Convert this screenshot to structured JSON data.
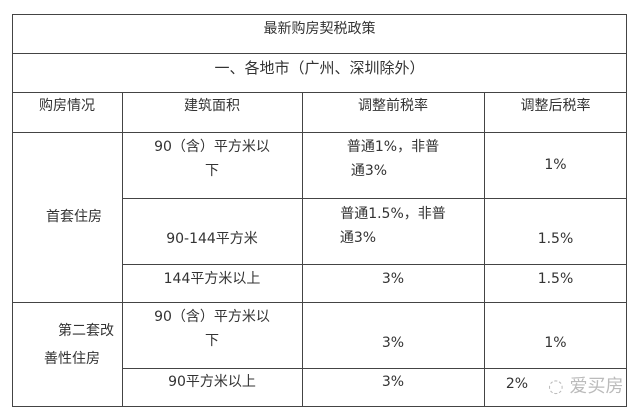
{
  "title": "最新购房契税政策",
  "subtitle": "一、各地市（广州、深圳除外）",
  "headers": [
    "购房情况",
    "建筑面积",
    "调整前税率",
    "调整后税率"
  ],
  "groups": [
    {
      "label_lines": [
        "首套住房"
      ],
      "rows": [
        {
          "area": [
            "90（含）平方米以",
            "下"
          ],
          "before": [
            "普通1%，非普",
            "通3%"
          ],
          "after": "1%"
        },
        {
          "area": [
            "90-144平方米"
          ],
          "before": [
            "普通1.5%，非普",
            "通3%"
          ],
          "after": "1.5%"
        },
        {
          "area": [
            "144平方米以上"
          ],
          "before": [
            "3%"
          ],
          "after": "1.5%"
        }
      ]
    },
    {
      "label_lines": [
        "第二套改",
        "善性住房"
      ],
      "rows": [
        {
          "area": [
            "90（含）平方米以",
            "下"
          ],
          "before": [
            "3%"
          ],
          "after": "1%"
        },
        {
          "area": [
            "90平方米以上"
          ],
          "before": [
            "3%"
          ],
          "after": "2%"
        }
      ]
    }
  ],
  "watermark": "爱买房",
  "watermark_icon": "wechat-icon"
}
